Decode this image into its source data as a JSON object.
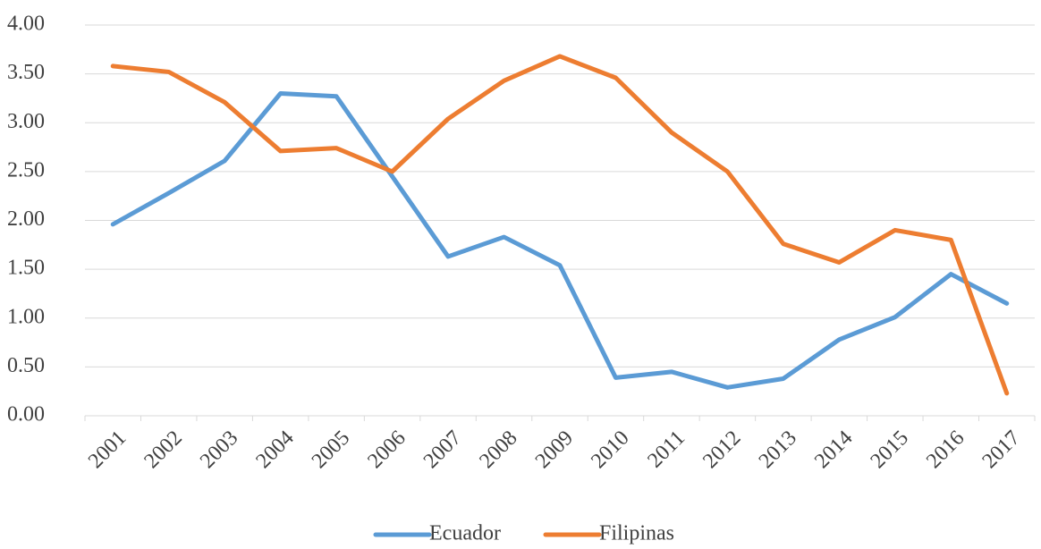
{
  "chart_data": {
    "type": "line",
    "categories": [
      "2001",
      "2002",
      "2003",
      "2004",
      "2005",
      "2006",
      "2007",
      "2008",
      "2009",
      "2010",
      "2011",
      "2012",
      "2013",
      "2014",
      "2015",
      "2016",
      "2017"
    ],
    "series": [
      {
        "name": "Ecuador",
        "color": "#5b9bd5",
        "values": [
          1.96,
          2.28,
          2.61,
          3.3,
          3.27,
          2.45,
          1.63,
          1.83,
          1.54,
          0.39,
          0.45,
          0.29,
          0.38,
          0.78,
          1.01,
          1.45,
          1.15
        ]
      },
      {
        "name": "Filipinas",
        "color": "#ed7d31",
        "values": [
          3.58,
          3.52,
          3.21,
          2.71,
          2.74,
          2.5,
          3.04,
          3.43,
          3.68,
          3.46,
          2.9,
          2.5,
          1.76,
          1.57,
          1.9,
          1.8,
          0.23
        ]
      }
    ],
    "ylim": [
      0,
      4
    ],
    "yticks": [
      {
        "value": 0,
        "label": "0.00"
      },
      {
        "value": 0.5,
        "label": "0.50"
      },
      {
        "value": 1,
        "label": "1.00"
      },
      {
        "value": 1.5,
        "label": "1.50"
      },
      {
        "value": 2,
        "label": "2.00"
      },
      {
        "value": 2.5,
        "label": "2.50"
      },
      {
        "value": 3,
        "label": "3.00"
      },
      {
        "value": 3.5,
        "label": "3.50"
      },
      {
        "value": 4,
        "label": "4.00"
      }
    ],
    "grid": true,
    "legend": "bottom"
  }
}
